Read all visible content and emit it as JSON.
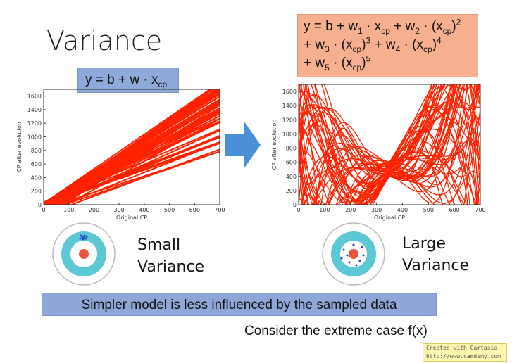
{
  "title": "Variance",
  "left_equation": {
    "y": "y = b + w · x",
    "sub": "cp"
  },
  "right_equation": {
    "line1": [
      "y = b + w",
      "1",
      " · x",
      "cp",
      " + w",
      "2",
      " · (x",
      "cp",
      ")",
      "2"
    ],
    "line2": [
      "+ w",
      "3",
      " · (x",
      "cp",
      ")",
      "3",
      " + w",
      "4",
      " · (x",
      "cp",
      ")",
      "4"
    ],
    "line3": [
      "+ w",
      "5",
      " · (x",
      "cp",
      ")",
      "5"
    ]
  },
  "chart_data": [
    {
      "type": "line",
      "xlabel": "Original CP",
      "ylabel": "CP after evolution",
      "xlim": [
        0,
        700
      ],
      "ylim": [
        0,
        1700
      ],
      "xticks": [
        "0",
        "100",
        "200",
        "300",
        "400",
        "500",
        "600",
        "700"
      ],
      "yticks": [
        "0",
        "200",
        "400",
        "600",
        "800",
        "1000",
        "1200",
        "1400",
        "1600"
      ],
      "series_color": "#ff2200",
      "description_values": {
        "model": "linear",
        "slope_range": [
          1.2,
          2.6
        ]
      }
    },
    {
      "type": "line",
      "xlabel": "Original CP",
      "ylabel": "CP after evolution",
      "xlim": [
        0,
        700
      ],
      "ylim": [
        0,
        1700
      ],
      "xticks": [
        "0",
        "100",
        "200",
        "300",
        "400",
        "500",
        "600",
        "700"
      ],
      "yticks": [
        "0",
        "200",
        "400",
        "600",
        "800",
        "1000",
        "1200",
        "1400",
        "1600"
      ],
      "series_color": "#ff2200",
      "description_values": {
        "model": "degree-5 polynomial"
      }
    }
  ],
  "small_variance": [
    "Small",
    "Variance"
  ],
  "large_variance": [
    "Large",
    "Variance"
  ],
  "banner": "Simpler model is less influenced by the sampled data",
  "consider": "Consider the extreme case f(x)",
  "watermark": {
    "line1": "Created with Camtasia",
    "line2": "http://www.camdemy.com"
  },
  "colors": {
    "line": "#ff2200",
    "blue_box": "#8eaadb",
    "orange_box": "#f6b08f",
    "arrow": "#4a90d6",
    "target_ring": "#5bc8d4",
    "bullseye": "#e8553a"
  }
}
